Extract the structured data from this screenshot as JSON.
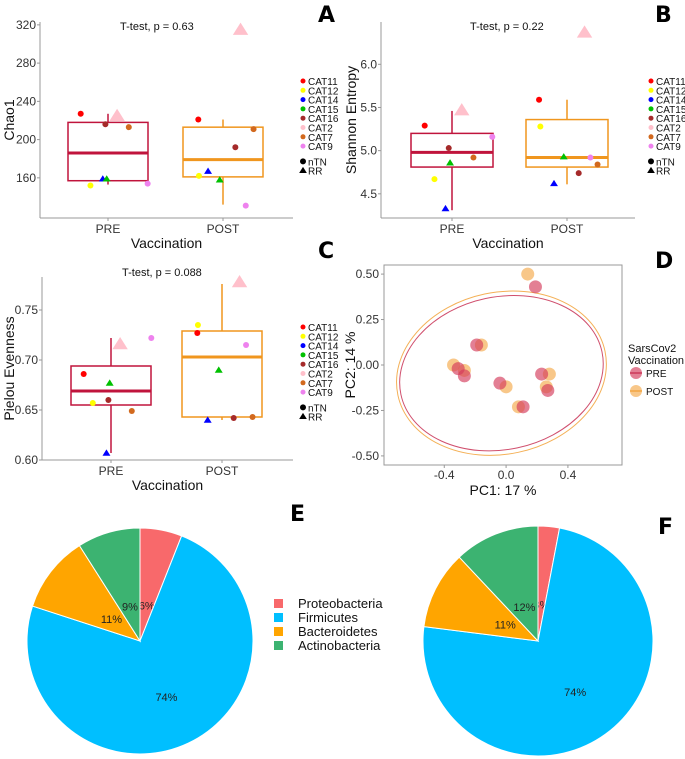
{
  "categories_colors": {
    "CAT11": "#ff0000",
    "CAT12": "#ffff00",
    "CAT14": "#0000ff",
    "CAT15": "#00c000",
    "CAT16": "#a52a2a",
    "CAT2": "#ffc0cb",
    "CAT7": "#d2691e",
    "CAT9": "#ee82ee"
  },
  "group_colors": {
    "PRE": "#c0143c",
    "POST": "#f0961e"
  },
  "chart_data": [
    {
      "id": "A",
      "type": "box",
      "panel_letter": "A",
      "annotation": "T-test, p = 0.63",
      "xlabel": "Vaccination",
      "ylabel": "Chao1",
      "categories": [
        "PRE",
        "POST"
      ],
      "yticks": [
        160,
        200,
        240,
        280,
        320
      ],
      "ylim": [
        118,
        323
      ],
      "boxes": [
        {
          "group": "PRE",
          "q1": 157,
          "median": 186,
          "q3": 218,
          "whisker_low": 153,
          "whisker_high": 227
        },
        {
          "group": "POST",
          "q1": 161,
          "median": 179,
          "q3": 213,
          "whisker_low": 132,
          "whisker_high": 221
        }
      ],
      "points": [
        {
          "group": "PRE",
          "cat": "CAT11",
          "shape": "nTN",
          "value": 227,
          "jitter": -0.42
        },
        {
          "group": "PRE",
          "cat": "CAT12",
          "shape": "nTN",
          "value": 152,
          "jitter": -0.27
        },
        {
          "group": "PRE",
          "cat": "CAT14",
          "shape": "RR",
          "value": 159,
          "jitter": -0.08
        },
        {
          "group": "PRE",
          "cat": "CAT15",
          "shape": "RR",
          "value": 159,
          "jitter": -0.02
        },
        {
          "group": "PRE",
          "cat": "CAT16",
          "shape": "nTN",
          "value": 216,
          "jitter": -0.04
        },
        {
          "group": "PRE",
          "cat": "CAT2",
          "shape": "RR",
          "value": 225,
          "jitter": 0.14
        },
        {
          "group": "PRE",
          "cat": "CAT7",
          "shape": "nTN",
          "value": 213,
          "jitter": 0.32
        },
        {
          "group": "PRE",
          "cat": "CAT9",
          "shape": "nTN",
          "value": 154,
          "jitter": 0.61
        },
        {
          "group": "POST",
          "cat": "CAT11",
          "shape": "nTN",
          "value": 221,
          "jitter": -0.38
        },
        {
          "group": "POST",
          "cat": "CAT12",
          "shape": "nTN",
          "value": 162,
          "jitter": -0.37
        },
        {
          "group": "POST",
          "cat": "CAT14",
          "shape": "RR",
          "value": 167,
          "jitter": -0.23
        },
        {
          "group": "POST",
          "cat": "CAT15",
          "shape": "RR",
          "value": 158,
          "jitter": -0.05
        },
        {
          "group": "POST",
          "cat": "CAT16",
          "shape": "nTN",
          "value": 192,
          "jitter": 0.19
        },
        {
          "group": "POST",
          "cat": "CAT2",
          "shape": "RR",
          "value": 315,
          "jitter": 0.27
        },
        {
          "group": "POST",
          "cat": "CAT7",
          "shape": "nTN",
          "value": 211,
          "jitter": 0.47
        },
        {
          "group": "POST",
          "cat": "CAT9",
          "shape": "nTN",
          "value": 131,
          "jitter": 0.35
        }
      ],
      "legend_items": [
        "CAT11",
        "CAT12",
        "CAT14",
        "CAT15",
        "CAT16",
        "CAT2",
        "CAT7",
        "CAT9"
      ],
      "shape_legend": [
        {
          "label": "nTN",
          "shape": "circle"
        },
        {
          "label": "RR",
          "shape": "triangle"
        }
      ]
    },
    {
      "id": "B",
      "type": "box",
      "panel_letter": "B",
      "annotation": "T-test, p = 0.22",
      "xlabel": "Vaccination",
      "ylabel": "Shannon Entropy",
      "categories": [
        "PRE",
        "POST"
      ],
      "yticks": [
        4.5,
        5.0,
        5.5,
        6.0
      ],
      "ylim": [
        4.22,
        6.49
      ],
      "boxes": [
        {
          "group": "PRE",
          "q1": 4.81,
          "median": 4.98,
          "q3": 5.2,
          "whisker_low": 4.31,
          "whisker_high": 5.46
        },
        {
          "group": "POST",
          "q1": 4.81,
          "median": 4.92,
          "q3": 5.36,
          "whisker_low": 4.61,
          "whisker_high": 5.59
        }
      ],
      "points": [
        {
          "group": "PRE",
          "cat": "CAT11",
          "shape": "nTN",
          "value": 5.29,
          "jitter": -0.42
        },
        {
          "group": "PRE",
          "cat": "CAT12",
          "shape": "nTN",
          "value": 4.67,
          "jitter": -0.27
        },
        {
          "group": "PRE",
          "cat": "CAT14",
          "shape": "RR",
          "value": 4.33,
          "jitter": -0.1
        },
        {
          "group": "PRE",
          "cat": "CAT15",
          "shape": "RR",
          "value": 4.86,
          "jitter": -0.03
        },
        {
          "group": "PRE",
          "cat": "CAT16",
          "shape": "nTN",
          "value": 5.03,
          "jitter": -0.05
        },
        {
          "group": "PRE",
          "cat": "CAT2",
          "shape": "RR",
          "value": 5.47,
          "jitter": 0.15
        },
        {
          "group": "PRE",
          "cat": "CAT7",
          "shape": "nTN",
          "value": 4.92,
          "jitter": 0.33
        },
        {
          "group": "PRE",
          "cat": "CAT9",
          "shape": "nTN",
          "value": 5.16,
          "jitter": 0.62
        },
        {
          "group": "POST",
          "cat": "CAT11",
          "shape": "nTN",
          "value": 5.59,
          "jitter": -0.43
        },
        {
          "group": "POST",
          "cat": "CAT12",
          "shape": "nTN",
          "value": 5.28,
          "jitter": -0.41
        },
        {
          "group": "POST",
          "cat": "CAT14",
          "shape": "RR",
          "value": 4.62,
          "jitter": -0.2
        },
        {
          "group": "POST",
          "cat": "CAT15",
          "shape": "RR",
          "value": 4.93,
          "jitter": -0.05
        },
        {
          "group": "POST",
          "cat": "CAT16",
          "shape": "nTN",
          "value": 4.74,
          "jitter": 0.18
        },
        {
          "group": "POST",
          "cat": "CAT2",
          "shape": "RR",
          "value": 6.37,
          "jitter": 0.27
        },
        {
          "group": "POST",
          "cat": "CAT7",
          "shape": "nTN",
          "value": 4.84,
          "jitter": 0.47
        },
        {
          "group": "POST",
          "cat": "CAT9",
          "shape": "nTN",
          "value": 4.92,
          "jitter": 0.36
        }
      ],
      "legend_items": [
        "CAT11",
        "CAT12",
        "CAT14",
        "CAT15",
        "CAT16",
        "CAT2",
        "CAT7",
        "CAT9"
      ],
      "shape_legend": [
        {
          "label": "nTN",
          "shape": "circle"
        },
        {
          "label": "RR",
          "shape": "triangle"
        }
      ]
    },
    {
      "id": "C",
      "type": "box",
      "panel_letter": "C",
      "annotation": "T-test, p = 0.088",
      "xlabel": "Vaccination",
      "ylabel": "Pielou Evenness",
      "categories": [
        "PRE",
        "POST"
      ],
      "yticks": [
        0.6,
        0.65,
        0.7,
        0.75
      ],
      "ylim": [
        0.6,
        0.783
      ],
      "ytick_format": 2,
      "boxes": [
        {
          "group": "PRE",
          "q1": 0.655,
          "median": 0.669,
          "q3": 0.694,
          "whisker_low": 0.607,
          "whisker_high": 0.722
        },
        {
          "group": "POST",
          "q1": 0.643,
          "median": 0.703,
          "q3": 0.729,
          "whisker_low": 0.64,
          "whisker_high": 0.776
        }
      ],
      "points": [
        {
          "group": "PRE",
          "cat": "CAT11",
          "shape": "nTN",
          "value": 0.686,
          "jitter": -0.42
        },
        {
          "group": "PRE",
          "cat": "CAT12",
          "shape": "nTN",
          "value": 0.657,
          "jitter": -0.28
        },
        {
          "group": "PRE",
          "cat": "CAT14",
          "shape": "RR",
          "value": 0.607,
          "jitter": -0.07
        },
        {
          "group": "PRE",
          "cat": "CAT15",
          "shape": "RR",
          "value": 0.677,
          "jitter": -0.02
        },
        {
          "group": "PRE",
          "cat": "CAT16",
          "shape": "nTN",
          "value": 0.66,
          "jitter": -0.04
        },
        {
          "group": "PRE",
          "cat": "CAT2",
          "shape": "RR",
          "value": 0.716,
          "jitter": 0.14
        },
        {
          "group": "PRE",
          "cat": "CAT7",
          "shape": "nTN",
          "value": 0.649,
          "jitter": 0.32
        },
        {
          "group": "PRE",
          "cat": "CAT9",
          "shape": "nTN",
          "value": 0.722,
          "jitter": 0.62
        },
        {
          "group": "POST",
          "cat": "CAT11",
          "shape": "nTN",
          "value": 0.727,
          "jitter": -0.38
        },
        {
          "group": "POST",
          "cat": "CAT12",
          "shape": "nTN",
          "value": 0.735,
          "jitter": -0.37
        },
        {
          "group": "POST",
          "cat": "CAT14",
          "shape": "RR",
          "value": 0.64,
          "jitter": -0.22
        },
        {
          "group": "POST",
          "cat": "CAT15",
          "shape": "RR",
          "value": 0.69,
          "jitter": -0.05
        },
        {
          "group": "POST",
          "cat": "CAT16",
          "shape": "nTN",
          "value": 0.642,
          "jitter": 0.18
        },
        {
          "group": "POST",
          "cat": "CAT2",
          "shape": "RR",
          "value": 0.778,
          "jitter": 0.27
        },
        {
          "group": "POST",
          "cat": "CAT7",
          "shape": "nTN",
          "value": 0.643,
          "jitter": 0.47
        },
        {
          "group": "POST",
          "cat": "CAT9",
          "shape": "nTN",
          "value": 0.715,
          "jitter": 0.37
        }
      ],
      "legend_items": [
        "CAT11",
        "CAT12",
        "CAT14",
        "CAT15",
        "CAT16",
        "CAT2",
        "CAT7",
        "CAT9"
      ],
      "shape_legend": [
        {
          "label": "nTN",
          "shape": "circle"
        },
        {
          "label": "RR",
          "shape": "triangle"
        }
      ]
    },
    {
      "id": "D",
      "type": "scatter",
      "panel_letter": "D",
      "xlabel": "PC1:  17 %",
      "ylabel": "PC2:  14 %",
      "xticks": [
        -0.4,
        0.0,
        0.4
      ],
      "yticks": [
        -0.5,
        -0.25,
        0.0,
        0.25,
        0.5
      ],
      "xlim": [
        -0.79,
        0.75
      ],
      "ylim": [
        -0.55,
        0.55
      ],
      "legend_title": "SarsCov2\nVaccination",
      "legend_title_lines": [
        "SarsCov2",
        "Vaccination"
      ],
      "series": [
        {
          "name": "PRE",
          "points": [
            [
              0.19,
              0.43
            ],
            [
              -0.19,
              0.11
            ],
            [
              -0.31,
              -0.02
            ],
            [
              -0.27,
              -0.06
            ],
            [
              -0.04,
              -0.1
            ],
            [
              0.23,
              -0.05
            ],
            [
              0.27,
              -0.14
            ],
            [
              0.11,
              -0.23
            ]
          ],
          "ellipse": {
            "cx": -0.03,
            "cy": -0.045,
            "rx": 0.665,
            "ry": 0.42,
            "angle_deg": -12
          }
        },
        {
          "name": "POST",
          "points": [
            [
              0.14,
              0.5
            ],
            [
              -0.16,
              0.11
            ],
            [
              -0.34,
              0.0
            ],
            [
              -0.27,
              -0.03
            ],
            [
              0.0,
              -0.12
            ],
            [
              0.28,
              -0.05
            ],
            [
              0.26,
              -0.12
            ],
            [
              0.08,
              -0.23
            ]
          ],
          "ellipse": {
            "cx": -0.03,
            "cy": -0.045,
            "rx": 0.685,
            "ry": 0.445,
            "angle_deg": -12
          }
        }
      ]
    },
    {
      "id": "E",
      "type": "pie",
      "panel_letter": "E",
      "slices": [
        {
          "label": "Proteobacteria",
          "value": 6,
          "text": "6%"
        },
        {
          "label": "Firmicutes",
          "value": 74,
          "text": "74%"
        },
        {
          "label": "Bacteroidetes",
          "value": 11,
          "text": "11%"
        },
        {
          "label": "Actinobacteria",
          "value": 9,
          "text": "9%"
        }
      ]
    },
    {
      "id": "F",
      "type": "pie",
      "panel_letter": "F",
      "slices": [
        {
          "label": "Proteobacteria",
          "value": 3,
          "text": "3%"
        },
        {
          "label": "Firmicutes",
          "value": 74,
          "text": "74%"
        },
        {
          "label": "Bacteroidetes",
          "value": 11,
          "text": "11%"
        },
        {
          "label": "Actinobacteria",
          "value": 12,
          "text": "12%"
        }
      ]
    }
  ],
  "pie_legend": [
    {
      "label": "Proteobacteria",
      "color": "#f8696b"
    },
    {
      "label": "Firmicutes",
      "color": "#00bfff"
    },
    {
      "label": "Bacteroidetes",
      "color": "#ffa500"
    },
    {
      "label": "Actinobacteria",
      "color": "#3cb371"
    }
  ]
}
